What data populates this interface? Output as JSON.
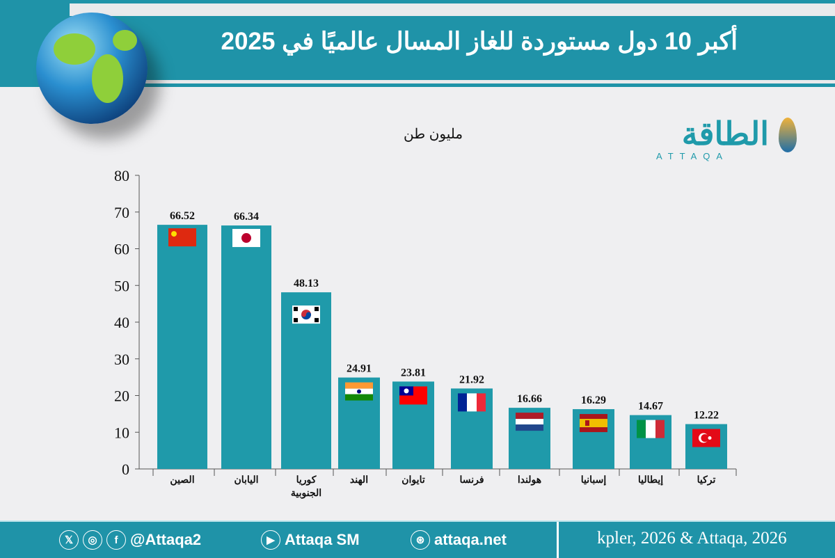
{
  "header": {
    "title": "أكبر 10 دول مستوردة للغاز المسال عالميًا في 2025"
  },
  "logo": {
    "arabic": "الطاقة",
    "latin": "ATTAQA"
  },
  "colors": {
    "header": "#1f93a8",
    "bar": "#1f9aaa",
    "background": "#efeff1"
  },
  "chart_data": {
    "type": "bar",
    "title": "أكبر 10 دول مستوردة للغاز المسال عالميًا في 2025",
    "ylabel": "مليون طن",
    "categories": [
      "الصين",
      "اليابان",
      "كوريا الجنوبية",
      "الهند",
      "تايوان",
      "فرنسا",
      "هولندا",
      "إسبانيا",
      "إيطاليا",
      "تركيا"
    ],
    "category_lines": [
      [
        "الصين"
      ],
      [
        "اليابان"
      ],
      [
        "كوريا",
        "الجنوبية"
      ],
      [
        "الهند"
      ],
      [
        "تايوان"
      ],
      [
        "فرنسا"
      ],
      [
        "هولندا"
      ],
      [
        "إسبانيا"
      ],
      [
        "إيطاليا"
      ],
      [
        "تركيا"
      ]
    ],
    "values": [
      66.52,
      66.34,
      48.13,
      24.91,
      23.81,
      21.92,
      16.66,
      16.29,
      14.67,
      12.22
    ],
    "value_labels": [
      "66.52",
      "66.34",
      "48.13",
      "24.91",
      "23.81",
      "21.92",
      "16.66",
      "16.29",
      "14.67",
      "12.22"
    ],
    "flags": [
      "china-flag",
      "japan-flag",
      "south-korea-flag",
      "india-flag",
      "taiwan-flag",
      "france-flag",
      "netherlands-flag",
      "spain-flag",
      "italy-flag",
      "turkey-flag"
    ],
    "ylim": [
      0,
      80
    ],
    "yticks": [
      "0",
      "10",
      "20",
      "30",
      "40",
      "50",
      "60",
      "70",
      "80"
    ],
    "grid": false,
    "legend": "none"
  },
  "footer": {
    "social_handle": "@Attaqa2",
    "youtube": "Attaqa SM",
    "website": "attaqa.net",
    "source": "kpler, 2026 & Attaqa, 2026"
  }
}
